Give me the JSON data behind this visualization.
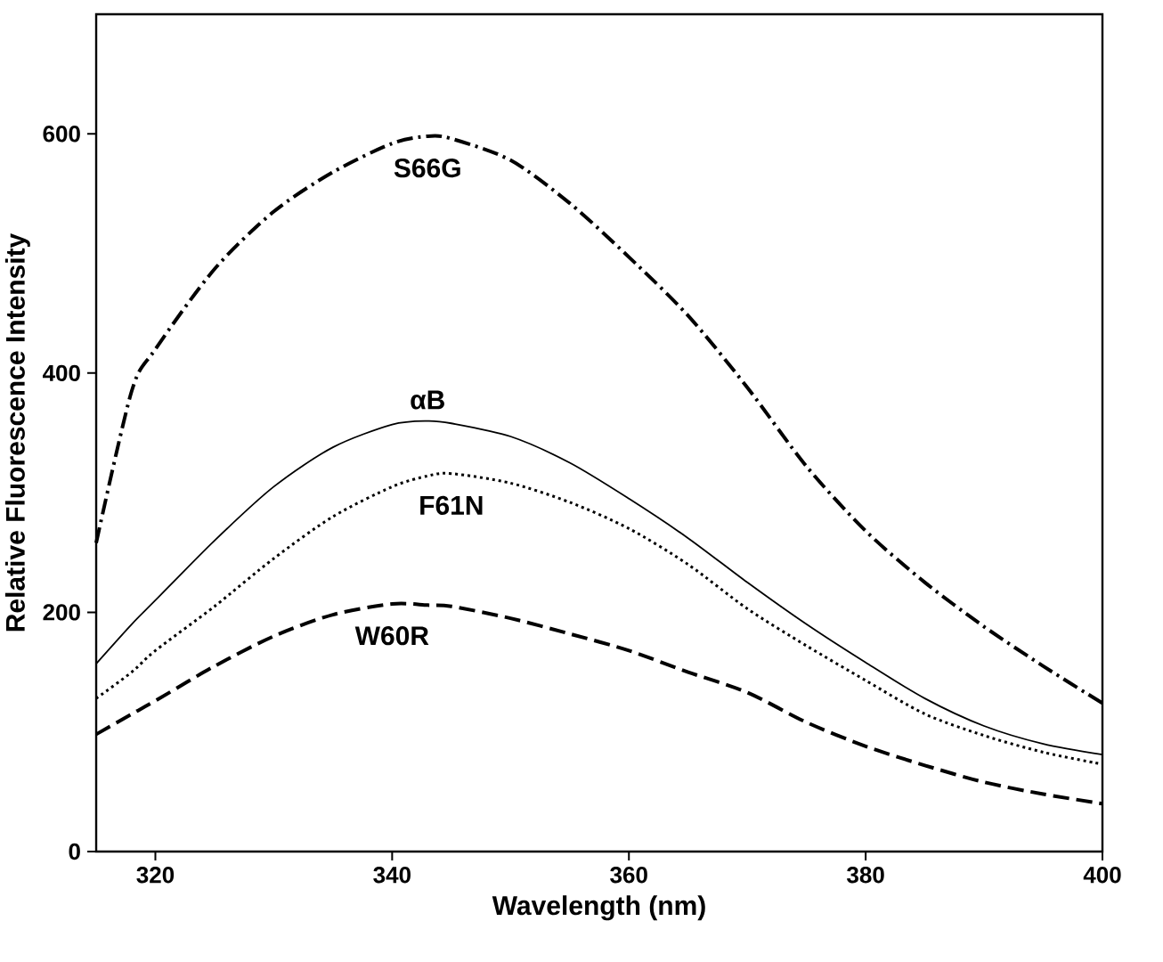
{
  "chart_data": {
    "type": "line",
    "xlabel": "Wavelength (nm)",
    "ylabel": "Relative Fluorescence Intensity",
    "xlim": [
      315,
      400
    ],
    "ylim": [
      0,
      700
    ],
    "xticks": [
      320,
      340,
      360,
      380,
      400
    ],
    "yticks": [
      0,
      200,
      400,
      600
    ],
    "grid": false,
    "legend": false,
    "marker": "none",
    "x": [
      315,
      318,
      320,
      325,
      330,
      335,
      340,
      343,
      345,
      350,
      355,
      360,
      365,
      370,
      375,
      380,
      385,
      390,
      395,
      400
    ],
    "series": [
      {
        "name": "S66G",
        "color": "#000000",
        "line_style": "dashdot",
        "values": [
          258,
          385,
          420,
          487,
          535,
          568,
          592,
          598,
          596,
          578,
          542,
          497,
          448,
          388,
          322,
          268,
          225,
          188,
          155,
          124
        ]
      },
      {
        "name": "αB",
        "color": "#000000",
        "line_style": "solid",
        "values": [
          157,
          190,
          210,
          260,
          305,
          338,
          357,
          360,
          358,
          347,
          325,
          295,
          262,
          225,
          190,
          158,
          128,
          105,
          90,
          81
        ]
      },
      {
        "name": "F61N",
        "color": "#000000",
        "line_style": "dotted",
        "values": [
          128,
          150,
          168,
          205,
          245,
          280,
          305,
          314,
          316,
          308,
          292,
          270,
          240,
          203,
          172,
          143,
          115,
          97,
          83,
          73
        ]
      },
      {
        "name": "W60R",
        "color": "#000000",
        "line_style": "dashed",
        "values": [
          98,
          115,
          126,
          155,
          180,
          198,
          207,
          206,
          205,
          195,
          182,
          168,
          150,
          133,
          108,
          88,
          72,
          58,
          48,
          40
        ]
      }
    ]
  }
}
